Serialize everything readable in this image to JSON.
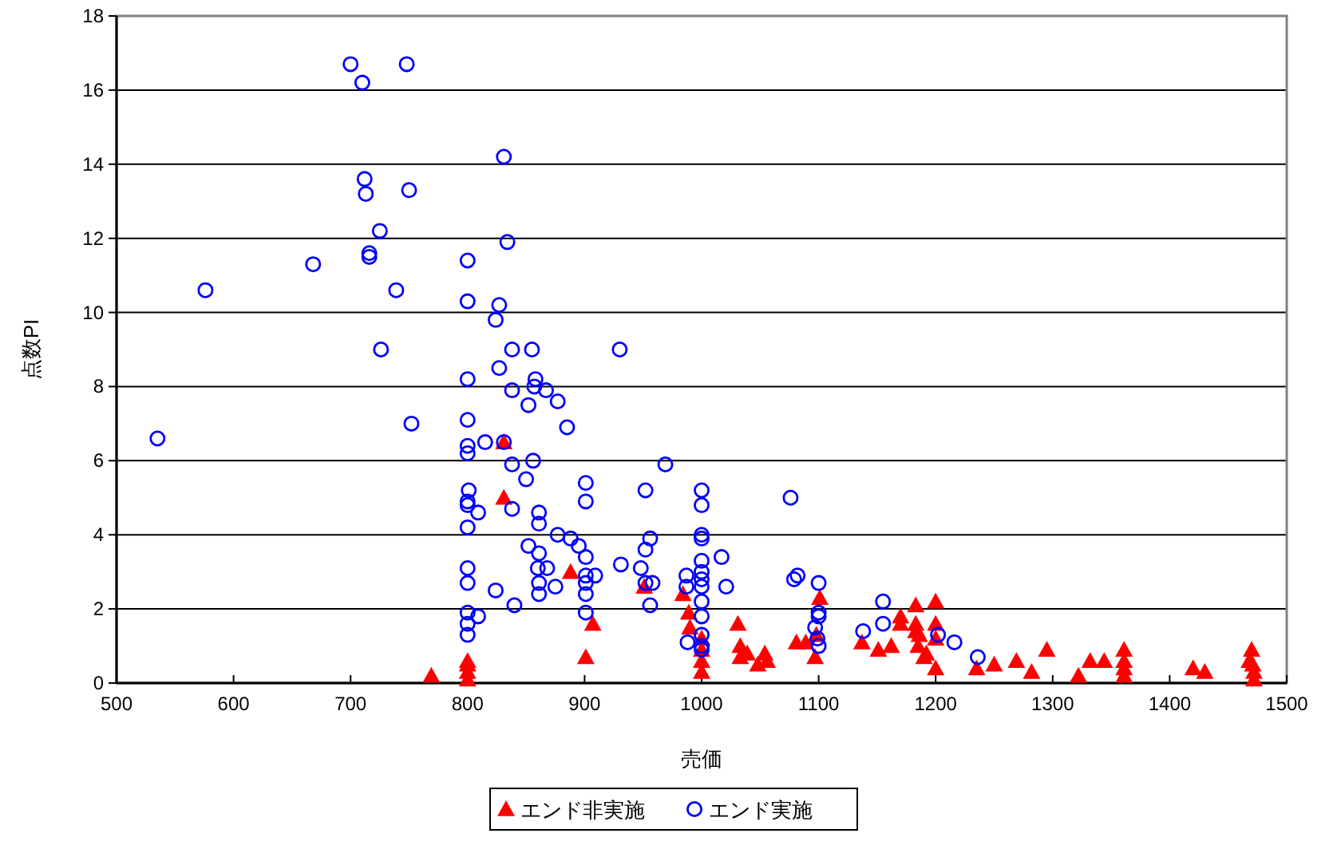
{
  "chart_data": {
    "type": "scatter",
    "xlabel": "売価",
    "ylabel": "点数PI",
    "xlim": [
      500,
      1500
    ],
    "xticks": [
      500,
      600,
      700,
      800,
      900,
      1000,
      1100,
      1200,
      1300,
      1400,
      1500
    ],
    "ylim": [
      0,
      18
    ],
    "yticks": [
      0,
      2,
      4,
      6,
      8,
      10,
      12,
      14,
      16,
      18
    ],
    "grid": "y",
    "legend": "bottom",
    "series": [
      {
        "name": "エンド非実施",
        "color": "#ff0000",
        "marker": "triangle",
        "x": [
          769,
          800,
          800,
          800,
          800,
          831,
          831,
          888,
          901,
          907,
          951,
          984,
          989,
          990,
          1000,
          1000,
          1000,
          1000,
          1031,
          1033,
          1033,
          1039,
          1048,
          1056,
          1054,
          1081,
          1089,
          1101,
          1098,
          1097,
          1137,
          1151,
          1162,
          1170,
          1183,
          1183,
          1186,
          1185,
          1190,
          1200,
          1170,
          1183,
          1200,
          1200,
          1192,
          1200,
          1235,
          1250,
          1269,
          1282,
          1295,
          1322,
          1332,
          1344,
          1361,
          1361,
          1361,
          1361,
          1420,
          1430,
          1470,
          1471,
          1472,
          1472,
          1468
        ],
        "values": [
          0.2,
          0.6,
          0.5,
          0.3,
          0.1,
          5.0,
          6.5,
          3.0,
          0.7,
          1.6,
          2.6,
          2.4,
          1.9,
          1.5,
          1.2,
          0.9,
          0.6,
          0.3,
          1.6,
          1.0,
          0.7,
          0.8,
          0.5,
          0.6,
          0.8,
          1.1,
          1.1,
          2.3,
          1.3,
          0.7,
          1.1,
          0.9,
          1.0,
          1.6,
          2.1,
          1.6,
          1.3,
          1.0,
          0.7,
          2.2,
          1.8,
          1.4,
          1.6,
          1.2,
          0.8,
          0.4,
          0.4,
          0.5,
          0.6,
          0.3,
          0.9,
          0.2,
          0.6,
          0.6,
          0.9,
          0.6,
          0.4,
          0.2,
          0.4,
          0.3,
          0.9,
          0.5,
          0.3,
          0.1,
          0.6
        ]
      },
      {
        "name": "エンド実施",
        "color": "#0000ff",
        "marker": "circle",
        "x": [
          700,
          748,
          710,
          831,
          712,
          713,
          750,
          725,
          834,
          716,
          716,
          668,
          800,
          576,
          739,
          800,
          827,
          824,
          726,
          930,
          838,
          855,
          800,
          827,
          858,
          838,
          857,
          867,
          877,
          852,
          752,
          800,
          885,
          815,
          831,
          800,
          535,
          800,
          856,
          838,
          969,
          850,
          901,
          801,
          952,
          1000,
          1076,
          800,
          901,
          809,
          800,
          838,
          861,
          1000,
          800,
          861,
          1000,
          1000,
          877,
          956,
          888,
          852,
          895,
          901,
          952,
          861,
          1017,
          1000,
          931,
          800,
          860,
          868,
          948,
          1000,
          987,
          1082,
          1079,
          901,
          909,
          958,
          1000,
          1100,
          800,
          861,
          1021,
          875,
          901,
          824,
          987,
          952,
          861,
          901,
          1000,
          1155,
          1000,
          800,
          1100,
          901,
          956,
          840,
          1100,
          1000,
          800,
          1155,
          809,
          1138,
          1202,
          1097,
          1099,
          800,
          1000,
          988,
          1100,
          1216,
          1236,
          1000,
          1000
        ],
        "values": [
          16.7,
          16.7,
          16.2,
          14.2,
          13.6,
          13.2,
          13.3,
          12.2,
          11.9,
          11.6,
          11.5,
          11.3,
          11.4,
          10.6,
          10.6,
          10.3,
          10.2,
          9.8,
          9.0,
          9.0,
          9.0,
          9.0,
          8.2,
          8.5,
          8.2,
          7.9,
          8.0,
          7.9,
          7.6,
          7.5,
          7.0,
          7.1,
          6.9,
          6.5,
          6.5,
          6.4,
          6.6,
          6.2,
          6.0,
          5.9,
          5.9,
          5.5,
          5.4,
          5.2,
          5.2,
          5.2,
          5.0,
          4.9,
          4.9,
          4.6,
          4.8,
          4.7,
          4.6,
          4.8,
          4.2,
          4.3,
          4.0,
          3.9,
          4.0,
          3.9,
          3.9,
          3.7,
          3.7,
          3.4,
          3.6,
          3.5,
          3.4,
          3.3,
          3.2,
          3.1,
          3.1,
          3.1,
          3.1,
          3.0,
          2.9,
          2.9,
          2.8,
          2.9,
          2.9,
          2.7,
          2.8,
          2.7,
          2.7,
          2.7,
          2.6,
          2.6,
          2.7,
          2.5,
          2.6,
          2.7,
          2.4,
          2.4,
          2.6,
          2.2,
          2.2,
          1.9,
          1.9,
          1.9,
          2.1,
          2.1,
          1.8,
          1.8,
          1.6,
          1.6,
          1.8,
          1.4,
          1.3,
          1.5,
          1.2,
          1.3,
          1.3,
          1.1,
          1.0,
          1.1,
          0.7,
          0.9,
          1.0
        ]
      }
    ]
  }
}
